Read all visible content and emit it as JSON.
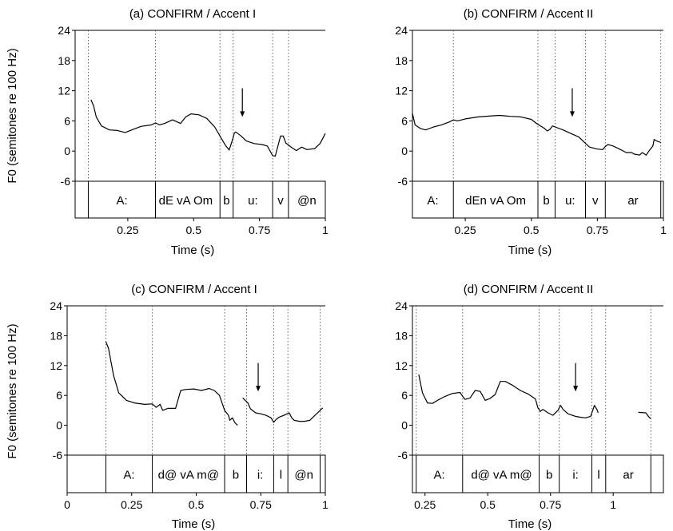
{
  "ylabel": "F0 (semitones re 100 Hz)",
  "chart_data": [
    {
      "type": "line",
      "title": "(a) CONFIRM / Accent I",
      "xlabel": "Time (s)",
      "ylabel": "F0 (semitones re 100 Hz)",
      "xlim": [
        0.05,
        1.0
      ],
      "ylim": [
        -6,
        24
      ],
      "xticks": [
        0.25,
        0.5,
        0.75,
        1
      ],
      "xtick_labels": [
        "0.25",
        "0.5",
        "0.75",
        "1"
      ],
      "yticks": [
        24,
        18,
        12,
        6,
        0,
        -6
      ],
      "ytick_labels": [
        "24",
        "18",
        "12",
        "6",
        "0",
        "-6"
      ],
      "arrow_time": 0.685,
      "boundaries": [
        0.1,
        0.355,
        0.6,
        0.65,
        0.8,
        0.86
      ],
      "segments": [
        {
          "label": "A:",
          "t": 0.228
        },
        {
          "label": "dE vA Om",
          "t": 0.47
        },
        {
          "label": "b",
          "t": 0.625
        },
        {
          "label": "u:",
          "t": 0.725
        },
        {
          "label": "v",
          "t": 0.83
        },
        {
          "label": "@n",
          "t": 0.93
        }
      ],
      "series": [
        {
          "values": [
            [
              0.11,
              10.2
            ],
            [
              0.12,
              9.0
            ],
            [
              0.13,
              6.8
            ],
            [
              0.15,
              5.0
            ],
            [
              0.18,
              4.2
            ],
            [
              0.21,
              4.1
            ],
            [
              0.24,
              3.7
            ],
            [
              0.27,
              4.3
            ],
            [
              0.3,
              4.9
            ],
            [
              0.34,
              5.2
            ],
            [
              0.355,
              5.6
            ],
            [
              0.37,
              5.2
            ],
            [
              0.39,
              5.5
            ],
            [
              0.42,
              6.2
            ],
            [
              0.45,
              5.5
            ],
            [
              0.47,
              6.8
            ],
            [
              0.49,
              7.4
            ],
            [
              0.52,
              7.2
            ],
            [
              0.55,
              6.5
            ],
            [
              0.58,
              4.8
            ],
            [
              0.6,
              3.0
            ],
            [
              0.62,
              1.2
            ],
            [
              0.635,
              0.2
            ],
            [
              0.648,
              2.3
            ],
            [
              0.655,
              3.6
            ],
            [
              0.66,
              3.8
            ],
            [
              0.68,
              3.0
            ],
            [
              0.7,
              2.0
            ],
            [
              0.73,
              1.5
            ],
            [
              0.76,
              1.3
            ],
            [
              0.78,
              1.0
            ],
            [
              0.8,
              -0.9
            ],
            [
              0.81,
              -1.0
            ],
            [
              0.82,
              1.0
            ],
            [
              0.83,
              3.0
            ],
            [
              0.84,
              3.0
            ],
            [
              0.85,
              1.6
            ],
            [
              0.87,
              0.8
            ],
            [
              0.89,
              0.1
            ],
            [
              0.91,
              0.8
            ],
            [
              0.93,
              0.3
            ],
            [
              0.96,
              0.5
            ],
            [
              0.98,
              1.5
            ],
            [
              1.0,
              3.5
            ]
          ]
        }
      ]
    },
    {
      "type": "line",
      "title": "(b) CONFIRM / Accent II",
      "xlabel": "Time (s)",
      "ylabel": "F0 (semitones re 100 Hz)",
      "xlim": [
        0.05,
        1.0
      ],
      "ylim": [
        -6,
        24
      ],
      "xticks": [
        0.25,
        0.5,
        0.75,
        1
      ],
      "xtick_labels": [
        "0.25",
        "0.5",
        "0.75",
        "1"
      ],
      "yticks": [
        24,
        18,
        12,
        6,
        0,
        -6
      ],
      "ytick_labels": [
        "24",
        "18",
        "12",
        "6",
        "0",
        "-6"
      ],
      "arrow_time": 0.655,
      "boundaries": [
        0.205,
        0.525,
        0.59,
        0.705,
        0.78,
        0.99
      ],
      "segments": [
        {
          "label": "A:",
          "t": 0.127
        },
        {
          "label": "dEn vA Om",
          "t": 0.365
        },
        {
          "label": "b",
          "t": 0.557
        },
        {
          "label": "u:",
          "t": 0.647
        },
        {
          "label": "v",
          "t": 0.742
        },
        {
          "label": "ar",
          "t": 0.885
        }
      ],
      "series": [
        {
          "values": [
            [
              0.05,
              7.5
            ],
            [
              0.06,
              5.2
            ],
            [
              0.08,
              4.5
            ],
            [
              0.1,
              4.2
            ],
            [
              0.13,
              4.8
            ],
            [
              0.16,
              5.2
            ],
            [
              0.19,
              5.8
            ],
            [
              0.205,
              6.2
            ],
            [
              0.22,
              6.0
            ],
            [
              0.25,
              6.4
            ],
            [
              0.3,
              6.8
            ],
            [
              0.35,
              7.0
            ],
            [
              0.38,
              7.1
            ],
            [
              0.42,
              6.9
            ],
            [
              0.46,
              6.8
            ],
            [
              0.5,
              6.3
            ],
            [
              0.52,
              5.5
            ],
            [
              0.55,
              4.5
            ],
            [
              0.56,
              4.0
            ],
            [
              0.57,
              4.3
            ],
            [
              0.58,
              5.0
            ],
            [
              0.59,
              4.8
            ],
            [
              0.62,
              4.2
            ],
            [
              0.65,
              3.5
            ],
            [
              0.68,
              2.8
            ],
            [
              0.7,
              1.8
            ],
            [
              0.72,
              0.8
            ],
            [
              0.75,
              0.4
            ],
            [
              0.77,
              0.3
            ],
            [
              0.78,
              0.9
            ],
            [
              0.79,
              1.3
            ],
            [
              0.81,
              1.0
            ],
            [
              0.83,
              0.5
            ],
            [
              0.86,
              -0.3
            ],
            [
              0.88,
              -0.3
            ],
            [
              0.89,
              -0.6
            ],
            [
              0.91,
              -0.8
            ],
            [
              0.92,
              -0.3
            ],
            [
              0.935,
              -0.8
            ],
            [
              0.945,
              0.0
            ],
            [
              0.96,
              1.0
            ],
            [
              0.965,
              2.3
            ],
            [
              0.975,
              2.0
            ],
            [
              0.99,
              1.7
            ]
          ]
        }
      ]
    },
    {
      "type": "line",
      "title": "(c) CONFIRM / Accent I",
      "xlabel": "Time (s)",
      "ylabel": "F0 (semitones re 100 Hz)",
      "xlim": [
        0,
        1.0
      ],
      "ylim": [
        -6,
        24
      ],
      "xticks": [
        0,
        0.25,
        0.5,
        0.75,
        1
      ],
      "xtick_labels": [
        "0",
        "0.25",
        "0.5",
        "0.75",
        "1"
      ],
      "yticks": [
        24,
        18,
        12,
        6,
        0,
        -6
      ],
      "ytick_labels": [
        "24",
        "18",
        "12",
        "6",
        "0",
        "-6"
      ],
      "arrow_time": 0.74,
      "boundaries": [
        0.15,
        0.33,
        0.61,
        0.695,
        0.8,
        0.855,
        0.98
      ],
      "segments": [
        {
          "label": "A:",
          "t": 0.24
        },
        {
          "label": "d@ vA m@",
          "t": 0.47
        },
        {
          "label": "b",
          "t": 0.653
        },
        {
          "label": "i:",
          "t": 0.748
        },
        {
          "label": "l",
          "t": 0.828
        },
        {
          "label": "@n",
          "t": 0.917
        }
      ],
      "series": [
        {
          "values": [
            [
              0.15,
              16.8
            ],
            [
              0.16,
              15.5
            ],
            [
              0.18,
              10.0
            ],
            [
              0.2,
              6.5
            ],
            [
              0.23,
              5.0
            ],
            [
              0.26,
              4.5
            ],
            [
              0.3,
              4.2
            ],
            [
              0.33,
              4.3
            ],
            [
              0.345,
              3.6
            ],
            [
              0.36,
              4.2
            ],
            [
              0.37,
              3.0
            ],
            [
              0.39,
              3.4
            ],
            [
              0.42,
              3.4
            ],
            [
              0.44,
              7.0
            ],
            [
              0.46,
              7.2
            ],
            [
              0.49,
              7.3
            ],
            [
              0.52,
              7.0
            ],
            [
              0.55,
              7.4
            ],
            [
              0.57,
              7.0
            ],
            [
              0.59,
              6.0
            ],
            [
              0.61,
              3.0
            ],
            [
              0.625,
              2.0
            ],
            [
              0.63,
              1.0
            ],
            [
              0.64,
              1.5
            ],
            [
              0.65,
              0.5
            ],
            [
              0.66,
              0.0
            ]
          ]
        },
        {
          "values": [
            [
              0.68,
              5.5
            ],
            [
              0.7,
              4.5
            ],
            [
              0.71,
              3.3
            ],
            [
              0.73,
              2.5
            ],
            [
              0.75,
              2.3
            ],
            [
              0.77,
              2.0
            ],
            [
              0.79,
              1.5
            ],
            [
              0.8,
              0.6
            ],
            [
              0.81,
              1.2
            ],
            [
              0.82,
              1.6
            ],
            [
              0.84,
              2.0
            ],
            [
              0.86,
              2.5
            ],
            [
              0.87,
              1.5
            ],
            [
              0.88,
              1.0
            ],
            [
              0.9,
              0.8
            ],
            [
              0.92,
              0.8
            ],
            [
              0.94,
              1.0
            ],
            [
              0.95,
              1.5
            ],
            [
              0.97,
              2.5
            ],
            [
              0.99,
              3.5
            ]
          ]
        }
      ]
    },
    {
      "type": "line",
      "title": "(d) CONFIRM / Accent II",
      "xlabel": "Time (s)",
      "ylabel": "F0 (semitones re 100 Hz)",
      "xlim": [
        0.2,
        1.2
      ],
      "ylim": [
        -6,
        24
      ],
      "xticks": [
        0.25,
        0.5,
        0.75,
        1
      ],
      "xtick_labels": [
        "0.25",
        "0.5",
        "0.75",
        "1"
      ],
      "yticks": [
        24,
        18,
        12,
        6,
        0,
        -6
      ],
      "ytick_labels": [
        "24",
        "18",
        "12",
        "6",
        "0",
        "-6"
      ],
      "arrow_time": 0.85,
      "boundaries": [
        0.215,
        0.4,
        0.705,
        0.785,
        0.915,
        0.97,
        1.15
      ],
      "segments": [
        {
          "label": "A:",
          "t": 0.307
        },
        {
          "label": "d@ vA m@",
          "t": 0.555
        },
        {
          "label": "b",
          "t": 0.745
        },
        {
          "label": "i:",
          "t": 0.85
        },
        {
          "label": "l",
          "t": 0.942
        },
        {
          "label": "ar",
          "t": 1.06
        }
      ],
      "series": [
        {
          "values": [
            [
              0.225,
              10.2
            ],
            [
              0.23,
              9.0
            ],
            [
              0.24,
              6.5
            ],
            [
              0.26,
              4.5
            ],
            [
              0.28,
              4.4
            ],
            [
              0.3,
              5.0
            ],
            [
              0.33,
              5.8
            ],
            [
              0.36,
              6.4
            ],
            [
              0.39,
              6.6
            ],
            [
              0.4,
              5.8
            ],
            [
              0.41,
              5.2
            ],
            [
              0.43,
              5.5
            ],
            [
              0.45,
              7.0
            ],
            [
              0.47,
              6.8
            ],
            [
              0.49,
              5.0
            ],
            [
              0.51,
              5.4
            ],
            [
              0.53,
              6.2
            ],
            [
              0.55,
              8.8
            ],
            [
              0.57,
              8.8
            ],
            [
              0.6,
              8.0
            ],
            [
              0.63,
              7.0
            ],
            [
              0.66,
              6.3
            ],
            [
              0.69,
              5.3
            ],
            [
              0.7,
              3.5
            ],
            [
              0.71,
              2.8
            ],
            [
              0.72,
              3.2
            ],
            [
              0.74,
              2.5
            ],
            [
              0.76,
              2.0
            ],
            [
              0.78,
              3.0
            ],
            [
              0.79,
              4.0
            ],
            [
              0.8,
              3.2
            ],
            [
              0.82,
              2.3
            ],
            [
              0.85,
              1.8
            ],
            [
              0.87,
              1.6
            ],
            [
              0.89,
              1.5
            ],
            [
              0.91,
              1.8
            ],
            [
              0.925,
              4.0
            ],
            [
              0.935,
              3.2
            ],
            [
              0.94,
              2.5
            ]
          ]
        },
        {
          "values": [
            [
              1.1,
              2.6
            ],
            [
              1.13,
              2.5
            ],
            [
              1.14,
              1.8
            ],
            [
              1.15,
              1.3
            ]
          ]
        }
      ]
    }
  ]
}
